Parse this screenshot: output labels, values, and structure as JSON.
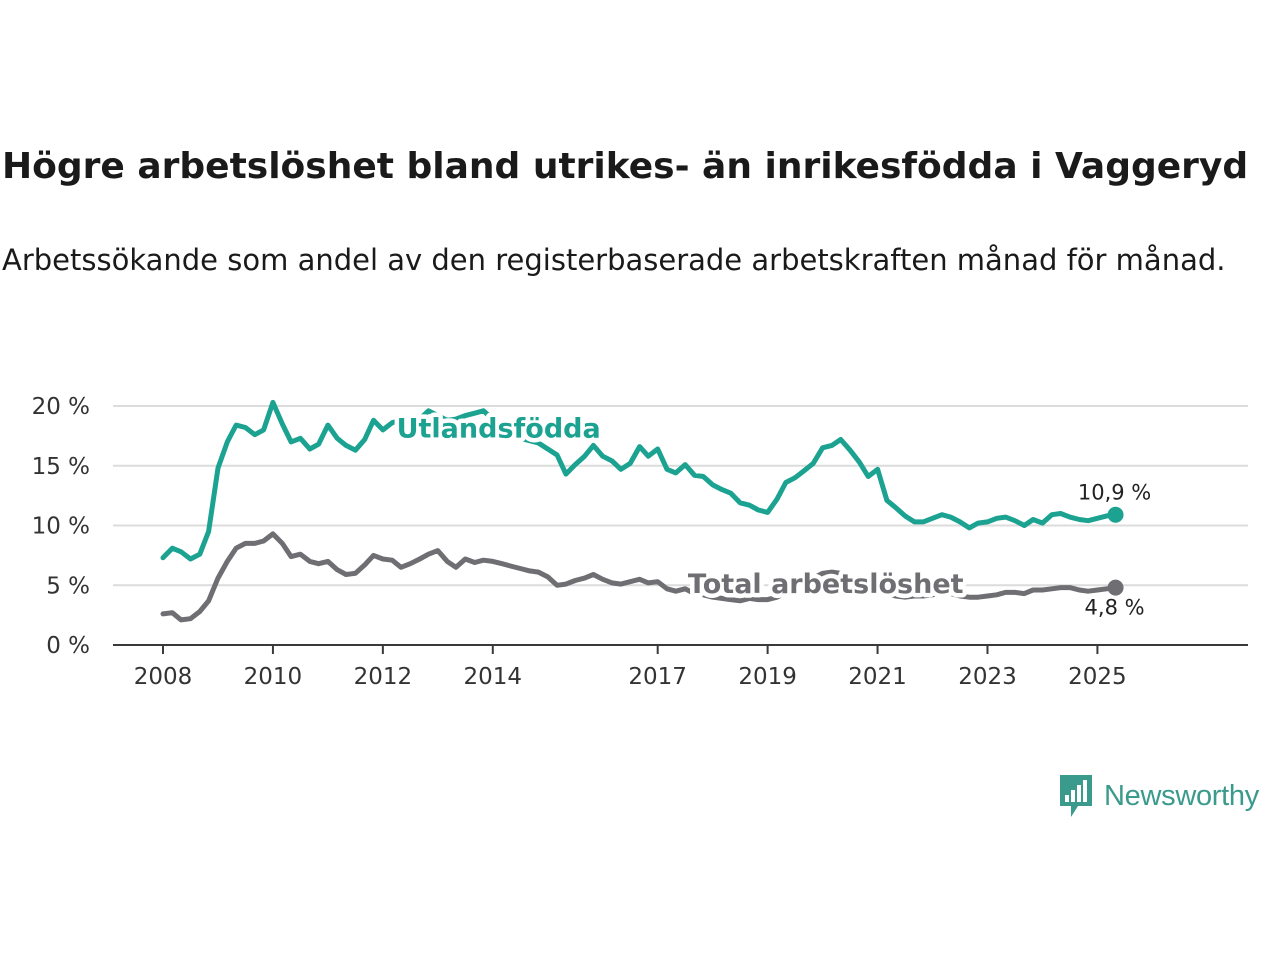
{
  "header": {
    "title": "Högre arbetslöshet bland utrikes- än inrikesfödda i Vaggeryd",
    "subtitle": "Arbetssökande som andel av den registerbaserade arbetskraften månad för månad."
  },
  "brand": {
    "name": "Newsworthy",
    "icon": "newsworthy-logo-icon",
    "color": "#3a9a8c"
  },
  "chart_data": {
    "type": "line",
    "title": "Högre arbetslöshet bland utrikes- än inrikesfödda i Vaggeryd",
    "subtitle": "Arbetssökande som andel av den registerbaserade arbetskraften månad för månad.",
    "xlabel": "",
    "ylabel": "",
    "xlim": [
      2008.0,
      2026.83
    ],
    "ylim": [
      0,
      20
    ],
    "yticks": [
      0,
      5,
      10,
      15,
      20
    ],
    "ytick_labels": [
      "0 %",
      "5 %",
      "10 %",
      "15 %",
      "20 %"
    ],
    "xticks": [
      2008,
      2010,
      2012,
      2014,
      2017,
      2019,
      2021,
      2023,
      2025
    ],
    "xtick_labels": [
      "2008",
      "2010",
      "2012",
      "2014",
      "2017",
      "2019",
      "2021",
      "2023",
      "2025"
    ],
    "grid": true,
    "series": [
      {
        "name": "Utlandsfödda",
        "color": "#1ba291",
        "end_label": "10,9 %",
        "points": [
          [
            2008.0,
            7.3
          ],
          [
            2008.17,
            8.1
          ],
          [
            2008.33,
            7.8
          ],
          [
            2008.5,
            7.2
          ],
          [
            2008.67,
            7.6
          ],
          [
            2008.83,
            9.5
          ],
          [
            2009.0,
            14.8
          ],
          [
            2009.17,
            17.0
          ],
          [
            2009.33,
            18.4
          ],
          [
            2009.5,
            18.2
          ],
          [
            2009.67,
            17.6
          ],
          [
            2009.83,
            18.0
          ],
          [
            2010.0,
            20.3
          ],
          [
            2010.17,
            18.5
          ],
          [
            2010.33,
            17.0
          ],
          [
            2010.5,
            17.3
          ],
          [
            2010.67,
            16.4
          ],
          [
            2010.83,
            16.8
          ],
          [
            2011.0,
            18.4
          ],
          [
            2011.17,
            17.3
          ],
          [
            2011.33,
            16.7
          ],
          [
            2011.5,
            16.3
          ],
          [
            2011.67,
            17.2
          ],
          [
            2011.83,
            18.8
          ],
          [
            2012.0,
            18.0
          ],
          [
            2012.17,
            18.6
          ],
          [
            2012.33,
            18.8
          ],
          [
            2012.5,
            18.5
          ],
          [
            2012.67,
            18.9
          ],
          [
            2012.83,
            19.6
          ],
          [
            2013.0,
            19.2
          ],
          [
            2013.17,
            18.8
          ],
          [
            2013.33,
            18.9
          ],
          [
            2013.5,
            19.2
          ],
          [
            2013.67,
            19.4
          ],
          [
            2013.83,
            19.6
          ],
          [
            2014.0,
            18.9
          ],
          [
            2014.17,
            18.4
          ],
          [
            2014.33,
            17.5
          ],
          [
            2014.5,
            17.3
          ],
          [
            2014.67,
            17.1
          ],
          [
            2014.83,
            16.9
          ],
          [
            2015.0,
            16.4
          ],
          [
            2015.17,
            15.9
          ],
          [
            2015.33,
            14.3
          ],
          [
            2015.5,
            15.1
          ],
          [
            2015.67,
            15.8
          ],
          [
            2015.83,
            16.7
          ],
          [
            2016.0,
            15.8
          ],
          [
            2016.17,
            15.4
          ],
          [
            2016.33,
            14.7
          ],
          [
            2016.5,
            15.2
          ],
          [
            2016.67,
            16.6
          ],
          [
            2016.83,
            15.8
          ],
          [
            2017.0,
            16.4
          ],
          [
            2017.17,
            14.7
          ],
          [
            2017.33,
            14.4
          ],
          [
            2017.5,
            15.1
          ],
          [
            2017.67,
            14.2
          ],
          [
            2017.83,
            14.1
          ],
          [
            2018.0,
            13.4
          ],
          [
            2018.17,
            13.0
          ],
          [
            2018.33,
            12.7
          ],
          [
            2018.5,
            11.9
          ],
          [
            2018.67,
            11.7
          ],
          [
            2018.83,
            11.3
          ],
          [
            2019.0,
            11.1
          ],
          [
            2019.17,
            12.2
          ],
          [
            2019.33,
            13.6
          ],
          [
            2019.5,
            14.0
          ],
          [
            2019.67,
            14.6
          ],
          [
            2019.83,
            15.2
          ],
          [
            2020.0,
            16.5
          ],
          [
            2020.17,
            16.7
          ],
          [
            2020.33,
            17.2
          ],
          [
            2020.5,
            16.3
          ],
          [
            2020.67,
            15.3
          ],
          [
            2020.83,
            14.1
          ],
          [
            2021.0,
            14.7
          ],
          [
            2021.17,
            12.1
          ],
          [
            2021.33,
            11.5
          ],
          [
            2021.5,
            10.8
          ],
          [
            2021.67,
            10.3
          ],
          [
            2021.83,
            10.3
          ],
          [
            2022.0,
            10.6
          ],
          [
            2022.17,
            10.9
          ],
          [
            2022.33,
            10.7
          ],
          [
            2022.5,
            10.3
          ],
          [
            2022.67,
            9.8
          ],
          [
            2022.83,
            10.2
          ],
          [
            2023.0,
            10.3
          ],
          [
            2023.17,
            10.6
          ],
          [
            2023.33,
            10.7
          ],
          [
            2023.5,
            10.4
          ],
          [
            2023.67,
            10.0
          ],
          [
            2023.83,
            10.5
          ],
          [
            2024.0,
            10.2
          ],
          [
            2024.17,
            10.9
          ],
          [
            2024.33,
            11.0
          ],
          [
            2024.5,
            10.7
          ],
          [
            2024.67,
            10.5
          ],
          [
            2024.83,
            10.4
          ],
          [
            2025.0,
            10.6
          ],
          [
            2025.17,
            10.8
          ],
          [
            2025.33,
            10.9
          ]
        ]
      },
      {
        "name": "Total arbetslöshet",
        "color": "#6e6e73",
        "end_label": "4,8 %",
        "points": [
          [
            2008.0,
            2.6
          ],
          [
            2008.17,
            2.7
          ],
          [
            2008.33,
            2.1
          ],
          [
            2008.5,
            2.2
          ],
          [
            2008.67,
            2.8
          ],
          [
            2008.83,
            3.7
          ],
          [
            2009.0,
            5.6
          ],
          [
            2009.17,
            7.0
          ],
          [
            2009.33,
            8.1
          ],
          [
            2009.5,
            8.5
          ],
          [
            2009.67,
            8.5
          ],
          [
            2009.83,
            8.7
          ],
          [
            2010.0,
            9.3
          ],
          [
            2010.17,
            8.5
          ],
          [
            2010.33,
            7.4
          ],
          [
            2010.5,
            7.6
          ],
          [
            2010.67,
            7.0
          ],
          [
            2010.83,
            6.8
          ],
          [
            2011.0,
            7.0
          ],
          [
            2011.17,
            6.3
          ],
          [
            2011.33,
            5.9
          ],
          [
            2011.5,
            6.0
          ],
          [
            2011.67,
            6.7
          ],
          [
            2011.83,
            7.5
          ],
          [
            2012.0,
            7.2
          ],
          [
            2012.17,
            7.1
          ],
          [
            2012.33,
            6.5
          ],
          [
            2012.5,
            6.8
          ],
          [
            2012.67,
            7.2
          ],
          [
            2012.83,
            7.6
          ],
          [
            2013.0,
            7.9
          ],
          [
            2013.17,
            7.0
          ],
          [
            2013.33,
            6.5
          ],
          [
            2013.5,
            7.2
          ],
          [
            2013.67,
            6.9
          ],
          [
            2013.83,
            7.1
          ],
          [
            2014.0,
            7.0
          ],
          [
            2014.17,
            6.8
          ],
          [
            2014.33,
            6.6
          ],
          [
            2014.5,
            6.4
          ],
          [
            2014.67,
            6.2
          ],
          [
            2014.83,
            6.1
          ],
          [
            2015.0,
            5.7
          ],
          [
            2015.17,
            5.0
          ],
          [
            2015.33,
            5.1
          ],
          [
            2015.5,
            5.4
          ],
          [
            2015.67,
            5.6
          ],
          [
            2015.83,
            5.9
          ],
          [
            2016.0,
            5.5
          ],
          [
            2016.17,
            5.2
          ],
          [
            2016.33,
            5.1
          ],
          [
            2016.5,
            5.3
          ],
          [
            2016.67,
            5.5
          ],
          [
            2016.83,
            5.2
          ],
          [
            2017.0,
            5.3
          ],
          [
            2017.17,
            4.7
          ],
          [
            2017.33,
            4.5
          ],
          [
            2017.5,
            4.7
          ],
          [
            2017.67,
            4.3
          ],
          [
            2017.83,
            4.2
          ],
          [
            2018.0,
            4.0
          ],
          [
            2018.17,
            3.9
          ],
          [
            2018.33,
            3.8
          ],
          [
            2018.5,
            3.7
          ],
          [
            2018.67,
            3.9
          ],
          [
            2018.83,
            3.8
          ],
          [
            2019.0,
            3.8
          ],
          [
            2019.17,
            4.0
          ],
          [
            2019.33,
            4.4
          ],
          [
            2019.5,
            4.8
          ],
          [
            2019.67,
            5.2
          ],
          [
            2019.83,
            5.6
          ],
          [
            2020.0,
            6.0
          ],
          [
            2020.17,
            6.1
          ],
          [
            2020.33,
            6.0
          ],
          [
            2020.5,
            5.5
          ],
          [
            2020.67,
            5.0
          ],
          [
            2020.83,
            4.7
          ],
          [
            2021.0,
            4.5
          ],
          [
            2021.17,
            4.3
          ],
          [
            2021.33,
            4.1
          ],
          [
            2021.5,
            4.0
          ],
          [
            2021.67,
            4.1
          ],
          [
            2021.83,
            4.1
          ],
          [
            2022.0,
            4.2
          ],
          [
            2022.17,
            4.4
          ],
          [
            2022.33,
            4.3
          ],
          [
            2022.5,
            4.1
          ],
          [
            2022.67,
            4.0
          ],
          [
            2022.83,
            4.0
          ],
          [
            2023.0,
            4.1
          ],
          [
            2023.17,
            4.2
          ],
          [
            2023.33,
            4.4
          ],
          [
            2023.5,
            4.4
          ],
          [
            2023.67,
            4.3
          ],
          [
            2023.83,
            4.6
          ],
          [
            2024.0,
            4.6
          ],
          [
            2024.17,
            4.7
          ],
          [
            2024.33,
            4.8
          ],
          [
            2024.5,
            4.8
          ],
          [
            2024.67,
            4.6
          ],
          [
            2024.83,
            4.5
          ],
          [
            2025.0,
            4.6
          ],
          [
            2025.17,
            4.7
          ],
          [
            2025.33,
            4.8
          ]
        ]
      }
    ],
    "annotations": [
      {
        "text": "Utlandsfödda",
        "series": "Utlandsfödda",
        "x": 2012.25,
        "y": 18.2
      },
      {
        "text": "Total arbetslöshet",
        "series": "Total arbetslöshet",
        "x": 2017.55,
        "y": 5.2
      }
    ]
  }
}
